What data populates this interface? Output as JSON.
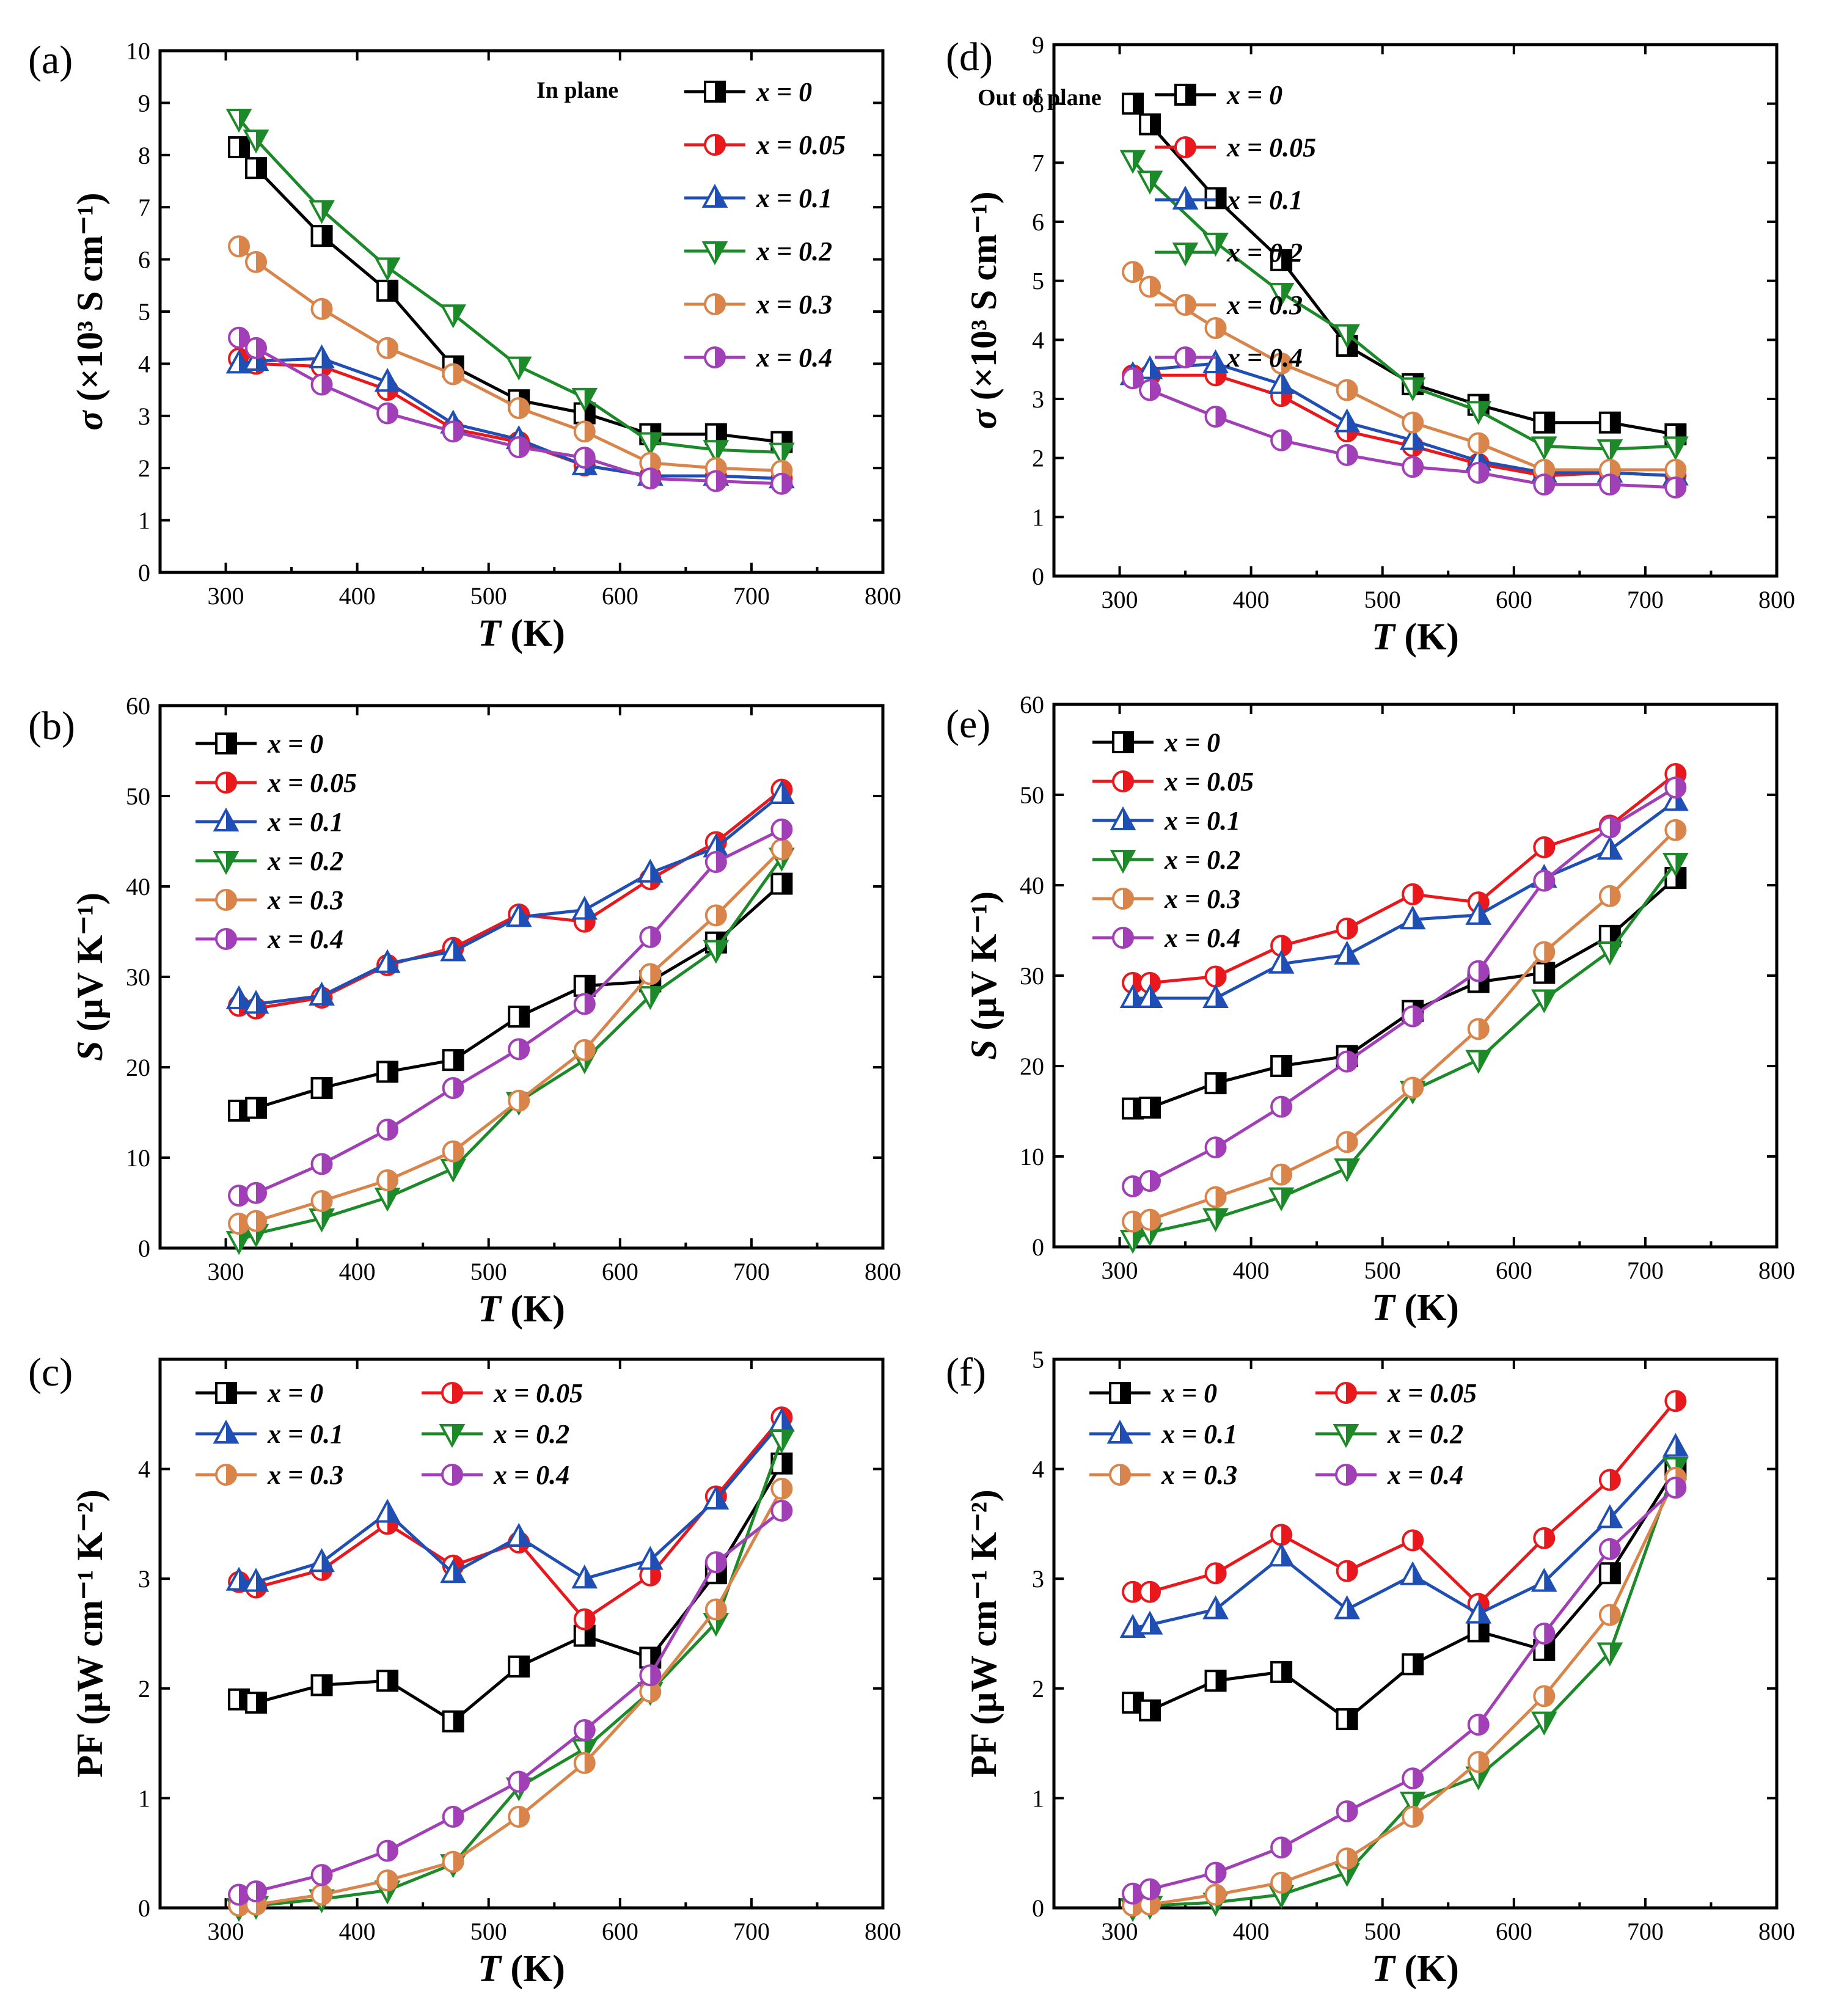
{
  "series_styles": [
    {
      "name": "x = 0",
      "color": "#000000",
      "marker": "square"
    },
    {
      "name": "x = 0.05",
      "color": "#e8181c",
      "marker": "circle"
    },
    {
      "name": "x = 0.1",
      "color": "#1f4fb4",
      "marker": "triangle-up"
    },
    {
      "name": "x = 0.2",
      "color": "#1d8a2a",
      "marker": "triangle-down"
    },
    {
      "name": "x = 0.3",
      "color": "#d8844a",
      "marker": "circle"
    },
    {
      "name": "x = 0.4",
      "color": "#a13fb7",
      "marker": "circle"
    }
  ],
  "chart_data": [
    {
      "panel": "(a)",
      "type": "line",
      "annotation": "In plane",
      "xlabel": "T (K)",
      "ylabel": "σ (×10³ S cm⁻¹)",
      "xlim": [
        250,
        800
      ],
      "ylim": [
        0,
        10
      ],
      "xticks": [
        300,
        400,
        500,
        600,
        700,
        800
      ],
      "yticks": [
        0,
        1,
        2,
        3,
        4,
        5,
        6,
        7,
        8,
        9,
        10
      ],
      "x": [
        310,
        323,
        373,
        423,
        473,
        523,
        573,
        623,
        673,
        723
      ],
      "legend": "top-right",
      "series": [
        {
          "name": "x = 0",
          "values": [
            8.15,
            7.75,
            6.45,
            5.4,
            3.95,
            3.3,
            3.05,
            2.65,
            2.65,
            2.5
          ]
        },
        {
          "name": "x = 0.05",
          "values": [
            4.1,
            4.0,
            3.95,
            3.5,
            2.75,
            2.5,
            2.05,
            1.85,
            1.85,
            1.8
          ]
        },
        {
          "name": "x = 0.1",
          "values": [
            4.0,
            4.05,
            4.1,
            3.65,
            2.85,
            2.55,
            2.05,
            1.85,
            1.85,
            1.8
          ]
        },
        {
          "name": "x = 0.2",
          "values": [
            8.7,
            8.3,
            6.95,
            5.85,
            4.95,
            3.95,
            3.35,
            2.5,
            2.35,
            2.3
          ]
        },
        {
          "name": "x = 0.3",
          "values": [
            6.25,
            5.95,
            5.05,
            4.3,
            3.8,
            3.15,
            2.7,
            2.1,
            2.0,
            1.95
          ]
        },
        {
          "name": "x = 0.4",
          "values": [
            4.5,
            4.3,
            3.6,
            3.05,
            2.7,
            2.4,
            2.2,
            1.8,
            1.75,
            1.7
          ]
        }
      ]
    },
    {
      "panel": "(d)",
      "type": "line",
      "annotation": "Out of plane",
      "xlabel": "T (K)",
      "ylabel": "σ (×10³ S cm⁻¹)",
      "xlim": [
        250,
        800
      ],
      "ylim": [
        0,
        9
      ],
      "xticks": [
        300,
        400,
        500,
        600,
        700,
        800
      ],
      "yticks": [
        0,
        1,
        2,
        3,
        4,
        5,
        6,
        7,
        8,
        9
      ],
      "x": [
        310,
        323,
        373,
        423,
        473,
        523,
        573,
        623,
        673,
        723
      ],
      "legend": "top-right",
      "series": [
        {
          "name": "x = 0",
          "values": [
            8.0,
            7.65,
            6.4,
            5.35,
            3.9,
            3.25,
            2.9,
            2.6,
            2.6,
            2.4
          ]
        },
        {
          "name": "x = 0.05",
          "values": [
            3.4,
            3.4,
            3.4,
            3.05,
            2.45,
            2.2,
            1.9,
            1.7,
            1.75,
            1.7
          ]
        },
        {
          "name": "x = 0.1",
          "values": [
            3.4,
            3.5,
            3.6,
            3.25,
            2.6,
            2.3,
            1.95,
            1.75,
            1.75,
            1.7
          ]
        },
        {
          "name": "x = 0.2",
          "values": [
            7.05,
            6.7,
            5.65,
            4.8,
            4.1,
            3.2,
            2.8,
            2.2,
            2.15,
            2.2
          ]
        },
        {
          "name": "x = 0.3",
          "values": [
            5.15,
            4.9,
            4.2,
            3.6,
            3.15,
            2.6,
            2.25,
            1.8,
            1.8,
            1.8
          ]
        },
        {
          "name": "x = 0.4",
          "values": [
            3.35,
            3.15,
            2.7,
            2.3,
            2.05,
            1.85,
            1.75,
            1.55,
            1.55,
            1.5
          ]
        }
      ]
    },
    {
      "panel": "(b)",
      "type": "line",
      "xlabel": "T (K)",
      "ylabel": "S (μV K⁻¹)",
      "xlim": [
        250,
        800
      ],
      "ylim": [
        0,
        60
      ],
      "xticks": [
        300,
        400,
        500,
        600,
        700,
        800
      ],
      "yticks": [
        0,
        10,
        20,
        30,
        40,
        50,
        60
      ],
      "x": [
        310,
        323,
        373,
        423,
        473,
        523,
        573,
        623,
        673,
        723
      ],
      "legend": "top-left",
      "series": [
        {
          "name": "x = 0",
          "values": [
            15.2,
            15.5,
            17.7,
            19.5,
            20.8,
            25.6,
            29.0,
            29.5,
            33.8,
            40.3
          ]
        },
        {
          "name": "x = 0.05",
          "values": [
            26.8,
            26.5,
            27.7,
            31.3,
            33.2,
            36.9,
            36.1,
            40.8,
            44.9,
            50.7
          ]
        },
        {
          "name": "x = 0.1",
          "values": [
            27.5,
            27.0,
            27.9,
            31.5,
            32.8,
            36.6,
            37.4,
            41.5,
            44.3,
            50.2
          ]
        },
        {
          "name": "x = 0.2",
          "values": [
            0.8,
            1.6,
            3.3,
            5.6,
            8.8,
            16.2,
            20.8,
            27.9,
            33.0,
            43.2
          ]
        },
        {
          "name": "x = 0.3",
          "values": [
            2.7,
            3.0,
            5.2,
            7.5,
            10.7,
            16.3,
            21.9,
            30.3,
            36.8,
            44.1
          ]
        },
        {
          "name": "x = 0.4",
          "values": [
            5.8,
            6.1,
            9.3,
            13.1,
            17.7,
            22.0,
            27.0,
            34.4,
            42.7,
            46.3
          ]
        }
      ]
    },
    {
      "panel": "(e)",
      "type": "line",
      "xlabel": "T (K)",
      "ylabel": "S (μV K⁻¹)",
      "xlim": [
        250,
        800
      ],
      "ylim": [
        0,
        60
      ],
      "xticks": [
        300,
        400,
        500,
        600,
        700,
        800
      ],
      "yticks": [
        0,
        10,
        20,
        30,
        40,
        50,
        60
      ],
      "x": [
        310,
        323,
        373,
        423,
        473,
        523,
        573,
        623,
        673,
        723
      ],
      "legend": "top-left",
      "series": [
        {
          "name": "x = 0",
          "values": [
            15.3,
            15.4,
            18.1,
            20.0,
            21.1,
            26.1,
            29.3,
            30.3,
            34.4,
            40.8
          ]
        },
        {
          "name": "x = 0.05",
          "values": [
            29.2,
            29.2,
            29.9,
            33.3,
            35.2,
            39.0,
            38.1,
            44.2,
            46.6,
            52.3
          ]
        },
        {
          "name": "x = 0.1",
          "values": [
            27.5,
            27.5,
            27.5,
            31.3,
            32.3,
            36.2,
            36.7,
            40.8,
            43.9,
            49.3
          ]
        },
        {
          "name": "x = 0.2",
          "values": [
            0.8,
            1.6,
            3.2,
            5.5,
            8.7,
            17.3,
            20.7,
            27.4,
            32.7,
            42.5
          ]
        },
        {
          "name": "x = 0.3",
          "values": [
            2.8,
            3.0,
            5.5,
            8.0,
            11.6,
            17.6,
            24.1,
            32.6,
            38.8,
            46.1
          ]
        },
        {
          "name": "x = 0.4",
          "values": [
            6.7,
            7.3,
            11.0,
            15.5,
            20.5,
            25.5,
            30.5,
            40.5,
            46.4,
            50.8
          ]
        }
      ]
    },
    {
      "panel": "(c)",
      "type": "line",
      "xlabel": "T (K)",
      "ylabel": "PF (μW cm⁻¹ K⁻²)",
      "xlim": [
        250,
        800
      ],
      "ylim": [
        0,
        5
      ],
      "xticks": [
        300,
        400,
        500,
        600,
        700,
        800
      ],
      "yticks": [
        0,
        1,
        2,
        3,
        4
      ],
      "x": [
        310,
        323,
        373,
        423,
        473,
        523,
        573,
        623,
        673,
        723
      ],
      "legend": "top-left",
      "series": [
        {
          "name": "x = 0",
          "values": [
            1.9,
            1.87,
            2.03,
            2.07,
            1.7,
            2.2,
            2.48,
            2.28,
            3.05,
            4.05
          ]
        },
        {
          "name": "x = 0.05",
          "values": [
            2.97,
            2.92,
            3.08,
            3.5,
            3.12,
            3.33,
            2.63,
            3.03,
            3.75,
            4.47
          ]
        },
        {
          "name": "x = 0.1",
          "values": [
            2.98,
            2.97,
            3.15,
            3.6,
            3.05,
            3.38,
            3.0,
            3.17,
            3.72,
            4.43
          ]
        },
        {
          "name": "x = 0.2",
          "values": [
            0.0,
            0.02,
            0.08,
            0.16,
            0.4,
            1.1,
            1.45,
            1.97,
            2.6,
            4.27
          ]
        },
        {
          "name": "x = 0.3",
          "values": [
            0.02,
            0.03,
            0.12,
            0.25,
            0.42,
            0.83,
            1.32,
            1.97,
            2.72,
            3.82
          ]
        },
        {
          "name": "x = 0.4",
          "values": [
            0.12,
            0.15,
            0.3,
            0.52,
            0.83,
            1.15,
            1.62,
            2.12,
            3.15,
            3.62
          ]
        }
      ]
    },
    {
      "panel": "(f)",
      "type": "line",
      "xlabel": "T (K)",
      "ylabel": "PF (μW cm⁻¹ K⁻²)",
      "xlim": [
        250,
        800
      ],
      "ylim": [
        0,
        5
      ],
      "xticks": [
        300,
        400,
        500,
        600,
        700,
        800
      ],
      "yticks": [
        0,
        1,
        2,
        3,
        4,
        5
      ],
      "x": [
        310,
        323,
        373,
        423,
        473,
        523,
        573,
        623,
        673,
        723
      ],
      "legend": "top-left",
      "series": [
        {
          "name": "x = 0",
          "values": [
            1.87,
            1.8,
            2.07,
            2.15,
            1.72,
            2.22,
            2.52,
            2.35,
            3.05,
            4.0
          ]
        },
        {
          "name": "x = 0.05",
          "values": [
            2.88,
            2.88,
            3.05,
            3.4,
            3.07,
            3.35,
            2.77,
            3.37,
            3.9,
            4.62
          ]
        },
        {
          "name": "x = 0.1",
          "values": [
            2.55,
            2.58,
            2.72,
            3.2,
            2.72,
            3.03,
            2.68,
            2.97,
            3.55,
            4.2
          ]
        },
        {
          "name": "x = 0.2",
          "values": [
            0.0,
            0.02,
            0.05,
            0.12,
            0.32,
            0.97,
            1.2,
            1.7,
            2.33,
            4.02
          ]
        },
        {
          "name": "x = 0.3",
          "values": [
            0.02,
            0.03,
            0.12,
            0.23,
            0.45,
            0.83,
            1.33,
            1.93,
            2.67,
            3.92
          ]
        },
        {
          "name": "x = 0.4",
          "values": [
            0.13,
            0.17,
            0.32,
            0.55,
            0.88,
            1.18,
            1.67,
            2.5,
            3.27,
            3.83
          ]
        }
      ]
    }
  ]
}
